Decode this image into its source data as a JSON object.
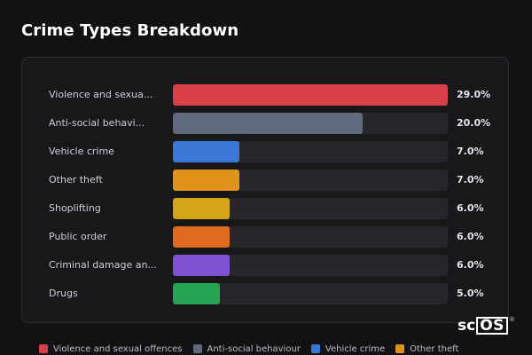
{
  "page": {
    "title": "Crime Types Breakdown"
  },
  "chart_data": {
    "type": "bar",
    "orientation": "horizontal",
    "xlim": [
      0,
      29.0
    ],
    "categories": [
      "Violence and sexua...",
      "Anti-social behavi...",
      "Vehicle crime",
      "Other theft",
      "Shoplifting",
      "Public order",
      "Criminal damage an...",
      "Drugs"
    ],
    "values": [
      29.0,
      20.0,
      7.0,
      7.0,
      6.0,
      6.0,
      6.0,
      5.0
    ],
    "value_labels": [
      "29.0%",
      "20.0%",
      "7.0%",
      "7.0%",
      "6.0%",
      "6.0%",
      "6.0%",
      "5.0%"
    ],
    "colors": [
      "#d8404a",
      "#5f6b7d",
      "#3a78d8",
      "#e1921b",
      "#d4a516",
      "#df6a1f",
      "#7e52d2",
      "#27a452"
    ]
  },
  "legend": {
    "items": [
      {
        "label": "Violence and sexual offences",
        "color": "#d8404a"
      },
      {
        "label": "Anti-social behaviour",
        "color": "#5f6b7d"
      },
      {
        "label": "Vehicle crime",
        "color": "#3a78d8"
      },
      {
        "label": "Other theft",
        "color": "#e1921b"
      }
    ]
  },
  "logo": {
    "text_left": "sc",
    "text_box": "OS",
    "mark": "®"
  }
}
